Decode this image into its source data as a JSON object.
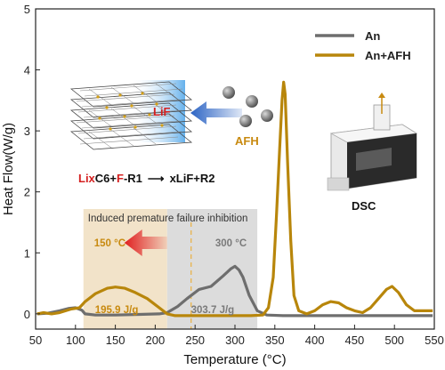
{
  "chart_data": {
    "type": "line",
    "xlabel": "Temperature (°C)",
    "ylabel": "Heat Flow(W/g)",
    "xlim": [
      50,
      550
    ],
    "ylim": [
      -0.25,
      5
    ],
    "xticks": [
      50,
      100,
      150,
      200,
      250,
      300,
      350,
      400,
      450,
      500,
      550
    ],
    "yticks": [
      0,
      1,
      2,
      3,
      4,
      5
    ],
    "legend_position": "top-right",
    "series": [
      {
        "name": "An",
        "color": "#6e6e6e",
        "points": [
          [
            52,
            0.0
          ],
          [
            65,
            0.01
          ],
          [
            80,
            0.05
          ],
          [
            92,
            0.09
          ],
          [
            100,
            0.1
          ],
          [
            108,
            0.06
          ],
          [
            112,
            0.0
          ],
          [
            125,
            -0.02
          ],
          [
            150,
            -0.02
          ],
          [
            180,
            -0.01
          ],
          [
            205,
            0.0
          ],
          [
            215,
            0.02
          ],
          [
            228,
            0.12
          ],
          [
            240,
            0.25
          ],
          [
            255,
            0.4
          ],
          [
            270,
            0.45
          ],
          [
            285,
            0.62
          ],
          [
            295,
            0.74
          ],
          [
            300,
            0.78
          ],
          [
            305,
            0.72
          ],
          [
            310,
            0.6
          ],
          [
            318,
            0.3
          ],
          [
            328,
            0.05
          ],
          [
            340,
            -0.02
          ],
          [
            360,
            -0.03
          ],
          [
            400,
            -0.03
          ],
          [
            450,
            -0.03
          ],
          [
            500,
            -0.03
          ],
          [
            548,
            -0.03
          ]
        ]
      },
      {
        "name": "An+AFH",
        "color": "#b8860b",
        "points": [
          [
            52,
            0.0
          ],
          [
            60,
            0.02
          ],
          [
            70,
            0.0
          ],
          [
            80,
            0.02
          ],
          [
            95,
            0.08
          ],
          [
            105,
            0.1
          ],
          [
            112,
            0.2
          ],
          [
            125,
            0.33
          ],
          [
            140,
            0.42
          ],
          [
            150,
            0.44
          ],
          [
            162,
            0.42
          ],
          [
            175,
            0.35
          ],
          [
            190,
            0.25
          ],
          [
            205,
            0.1
          ],
          [
            215,
            0.0
          ],
          [
            225,
            -0.03
          ],
          [
            240,
            -0.03
          ],
          [
            260,
            -0.03
          ],
          [
            300,
            -0.03
          ],
          [
            320,
            -0.03
          ],
          [
            335,
            -0.02
          ],
          [
            342,
            0.1
          ],
          [
            348,
            0.6
          ],
          [
            352,
            1.6
          ],
          [
            356,
            2.7
          ],
          [
            359,
            3.5
          ],
          [
            361,
            3.8
          ],
          [
            363,
            3.6
          ],
          [
            366,
            2.5
          ],
          [
            370,
            1.2
          ],
          [
            374,
            0.3
          ],
          [
            380,
            0.05
          ],
          [
            390,
            0.0
          ],
          [
            400,
            0.05
          ],
          [
            410,
            0.15
          ],
          [
            420,
            0.2
          ],
          [
            430,
            0.18
          ],
          [
            440,
            0.1
          ],
          [
            450,
            0.05
          ],
          [
            460,
            0.02
          ],
          [
            470,
            0.1
          ],
          [
            480,
            0.25
          ],
          [
            490,
            0.4
          ],
          [
            497,
            0.45
          ],
          [
            505,
            0.35
          ],
          [
            515,
            0.15
          ],
          [
            525,
            0.05
          ],
          [
            535,
            0.05
          ],
          [
            548,
            0.05
          ]
        ]
      }
    ],
    "annotations": {
      "inhibition_label": "Induced premature failure inhibition",
      "afh_peak_temp": "150 °C",
      "an_peak_temp": "300 °C",
      "afh_heat": "195.9 J/g",
      "an_heat": "303.7 J/g",
      "region_afh_x": [
        110,
        215
      ],
      "region_an_x": [
        215,
        328
      ],
      "dashed_line_x": 245,
      "inset_lif": "LiF",
      "inset_afh": "AFH",
      "inset_dsc": "DSC"
    },
    "reaction": {
      "p1": "Lix",
      "p2": "C6+",
      "p3": "F",
      "p4": "-R1",
      "p5": "xLiF",
      "p6": "+R2",
      "arrow": "⟶"
    },
    "colors": {
      "afh_region": "#f2e3c9",
      "an_region": "#dcdcdc",
      "red_text": "#d42020",
      "orange_text": "#c88a10",
      "gray_text": "#7a7a7a"
    }
  }
}
